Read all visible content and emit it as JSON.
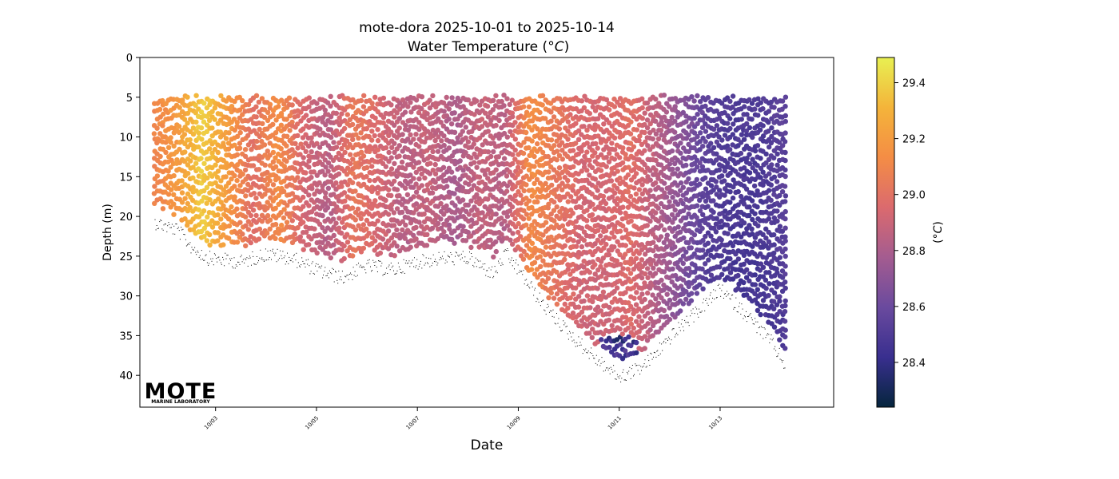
{
  "chart_data": {
    "type": "scatter",
    "title": "mote-dora 2025-10-01 to 2025-10-14",
    "subtitle": "Water Temperature (",
    "subtitle_unit_italic": "°C",
    "subtitle_close": ")",
    "xlabel": "Date",
    "ylabel": "Depth (m)",
    "x_range": [
      "2025-10-01T12:00",
      "2025-10-15T06:00"
    ],
    "y_range": [
      44,
      0
    ],
    "y_inverted": true,
    "x_ticks": [
      "10/03",
      "10/05",
      "10/07",
      "10/09",
      "10/11",
      "10/13"
    ],
    "y_ticks": [
      0,
      5,
      10,
      15,
      20,
      25,
      30,
      35,
      40
    ],
    "grid": false,
    "colorbar": {
      "label_open": "(",
      "label_unit_italic": "°C",
      "label_close": ")",
      "range": [
        28.24,
        29.49
      ],
      "ticks": [
        "28.4",
        "28.6",
        "28.8",
        "29.0",
        "29.2",
        "29.4"
      ],
      "colormap": "thermal",
      "colors": [
        "#05253d",
        "#392f8f",
        "#6a4a9e",
        "#a45c90",
        "#db6a6e",
        "#f48d45",
        "#f4b43a",
        "#e8f052"
      ]
    },
    "profile_start": "2025-10-01T19:00",
    "profile_end": "2025-10-14T07:00",
    "top_depth": 5.0,
    "bottom_depth": {
      "times": [
        "2025-10-01T19:00",
        "2025-10-02T06:00",
        "2025-10-02T12:00",
        "2025-10-02T20:00",
        "2025-10-03T12:00",
        "2025-10-04T00:00",
        "2025-10-04T12:00",
        "2025-10-05T00:00",
        "2025-10-05T12:00",
        "2025-10-06T00:00",
        "2025-10-06T12:00",
        "2025-10-07T00:00",
        "2025-10-07T12:00",
        "2025-10-08T00:00",
        "2025-10-08T12:00",
        "2025-10-08T18:00",
        "2025-10-09T00:00",
        "2025-10-09T12:00",
        "2025-10-10T00:00",
        "2025-10-10T12:00",
        "2025-10-11T00:00",
        "2025-10-11T12:00",
        "2025-10-12T00:00",
        "2025-10-12T12:00",
        "2025-10-13T00:00",
        "2025-10-13T12:00",
        "2025-10-14T00:00",
        "2025-10-14T07:00"
      ],
      "depths": [
        19.5,
        20.5,
        22.5,
        24.0,
        24.5,
        23.5,
        24.0,
        25.5,
        26.5,
        25.0,
        25.5,
        24.5,
        24.0,
        24.0,
        26.0,
        23.5,
        25.5,
        30.0,
        33.5,
        36.5,
        39.0,
        37.5,
        34.0,
        31.0,
        28.0,
        31.0,
        34.5,
        37.5
      ]
    },
    "temperature_trend": {
      "times": [
        "2025-10-01T19:00",
        "2025-10-02T06:00",
        "2025-10-02T18:00",
        "2025-10-03T06:00",
        "2025-10-03T18:00",
        "2025-10-04T06:00",
        "2025-10-04T18:00",
        "2025-10-05T06:00",
        "2025-10-05T18:00",
        "2025-10-06T06:00",
        "2025-10-06T18:00",
        "2025-10-07T06:00",
        "2025-10-07T18:00",
        "2025-10-08T06:00",
        "2025-10-08T18:00",
        "2025-10-09T06:00",
        "2025-10-09T18:00",
        "2025-10-10T06:00",
        "2025-10-10T18:00",
        "2025-10-11T06:00",
        "2025-10-11T18:00",
        "2025-10-12T06:00",
        "2025-10-12T18:00",
        "2025-10-13T06:00",
        "2025-10-13T18:00",
        "2025-10-14T07:00"
      ],
      "values": [
        29.1,
        29.2,
        29.4,
        29.2,
        29.0,
        29.15,
        28.95,
        28.85,
        29.05,
        28.95,
        28.85,
        28.9,
        28.8,
        28.9,
        28.85,
        29.15,
        29.05,
        28.95,
        28.95,
        29.0,
        28.85,
        28.7,
        28.55,
        28.5,
        28.5,
        28.55
      ]
    }
  },
  "logo": {
    "text": "MOTE",
    "subtext": "MARINE LABORATORY",
    "color": "#1d4f91"
  }
}
